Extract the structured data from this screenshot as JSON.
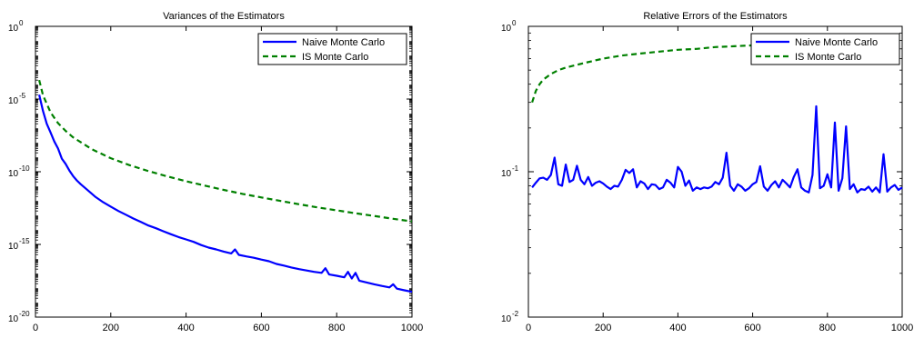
{
  "chart_data": [
    {
      "type": "line",
      "title": "Variances of the Estimators",
      "xlabel": "",
      "ylabel": "",
      "yscale": "log",
      "xlim": [
        0,
        1000
      ],
      "ylim": [
        1e-20,
        1
      ],
      "x_ticks": [
        "0",
        "200",
        "400",
        "600",
        "800",
        "1000"
      ],
      "y_ticks": [
        {
          "base": "10",
          "exp": "0"
        },
        {
          "base": "10",
          "exp": "-5"
        },
        {
          "base": "10",
          "exp": "-10"
        },
        {
          "base": "10",
          "exp": "-15"
        },
        {
          "base": "10",
          "exp": "-20"
        }
      ],
      "grid": false,
      "legend": "top-right",
      "series": [
        {
          "name": "Naive Monte Carlo",
          "color": "#0000ff",
          "style": "solid",
          "points": [
            [
              10,
              2e-05
            ],
            [
              20,
              1.5e-06
            ],
            [
              30,
              2e-07
            ],
            [
              40,
              5e-08
            ],
            [
              50,
              1.2e-08
            ],
            [
              60,
              4e-09
            ],
            [
              70,
              8e-10
            ],
            [
              80,
              3.5e-10
            ],
            [
              90,
              1.2e-10
            ],
            [
              100,
              5e-11
            ],
            [
              110,
              2.5e-11
            ],
            [
              120,
              1.4e-11
            ],
            [
              140,
              5e-12
            ],
            [
              160,
              1.8e-12
            ],
            [
              180,
              8e-13
            ],
            [
              200,
              4e-13
            ],
            [
              220,
              2e-13
            ],
            [
              240,
              1.1e-13
            ],
            [
              260,
              6e-14
            ],
            [
              280,
              3.5e-14
            ],
            [
              300,
              2e-14
            ],
            [
              320,
              1.3e-14
            ],
            [
              340,
              8e-15
            ],
            [
              360,
              5e-15
            ],
            [
              380,
              3.2e-15
            ],
            [
              400,
              2.2e-15
            ],
            [
              420,
              1.5e-15
            ],
            [
              440,
              9e-16
            ],
            [
              460,
              6e-16
            ],
            [
              480,
              4.5e-16
            ],
            [
              500,
              3.2e-16
            ],
            [
              520,
              2.4e-16
            ],
            [
              530,
              4.5e-16
            ],
            [
              540,
              1.9e-16
            ],
            [
              560,
              1.5e-16
            ],
            [
              580,
              1.2e-16
            ],
            [
              600,
              9e-17
            ],
            [
              620,
              7e-17
            ],
            [
              640,
              4.5e-17
            ],
            [
              660,
              3.5e-17
            ],
            [
              680,
              2.6e-17
            ],
            [
              700,
              2e-17
            ],
            [
              720,
              1.6e-17
            ],
            [
              740,
              1.3e-17
            ],
            [
              760,
              1.1e-17
            ],
            [
              770,
              2.3e-17
            ],
            [
              780,
              8.5e-18
            ],
            [
              800,
              7e-18
            ],
            [
              820,
              5.5e-18
            ],
            [
              830,
              1.3e-17
            ],
            [
              840,
              4.5e-18
            ],
            [
              850,
              1.1e-17
            ],
            [
              860,
              3.2e-18
            ],
            [
              880,
              2.4e-18
            ],
            [
              900,
              1.8e-18
            ],
            [
              920,
              1.4e-18
            ],
            [
              940,
              1.1e-18
            ],
            [
              950,
              1.8e-18
            ],
            [
              960,
              9e-19
            ],
            [
              980,
              7e-19
            ],
            [
              1000,
              5.5e-19
            ]
          ]
        },
        {
          "name": "IS Monte Carlo",
          "color": "#008000",
          "style": "dashed",
          "points": [
            [
              10,
              0.0002
            ],
            [
              20,
              1.8e-05
            ],
            [
              40,
              1.2e-06
            ],
            [
              60,
              2.2e-07
            ],
            [
              80,
              6.5e-08
            ],
            [
              100,
              2.3e-08
            ],
            [
              150,
              3.5e-09
            ],
            [
              200,
              8.5e-10
            ],
            [
              250,
              2.8e-10
            ],
            [
              300,
              1.1e-10
            ],
            [
              350,
              4.8e-11
            ],
            [
              400,
              2.2e-11
            ],
            [
              450,
              1.1e-11
            ],
            [
              500,
              5.6e-12
            ],
            [
              550,
              3e-12
            ],
            [
              600,
              1.7e-12
            ],
            [
              650,
              9.8e-13
            ],
            [
              700,
              5.8e-13
            ],
            [
              750,
              3.5e-13
            ],
            [
              800,
              2.2e-13
            ],
            [
              850,
              1.4e-13
            ],
            [
              900,
              9e-14
            ],
            [
              950,
              5.8e-14
            ],
            [
              1000,
              3.8e-14
            ]
          ]
        }
      ]
    },
    {
      "type": "line",
      "title": "Relative Errors of the Estimators",
      "xlabel": "",
      "ylabel": "",
      "yscale": "log",
      "xlim": [
        0,
        1000
      ],
      "ylim": [
        0.01,
        1
      ],
      "x_ticks": [
        "0",
        "200",
        "400",
        "600",
        "800",
        "1000"
      ],
      "y_ticks": [
        {
          "base": "10",
          "exp": "0"
        },
        {
          "base": "10",
          "exp": "-1"
        },
        {
          "base": "10",
          "exp": "-2"
        }
      ],
      "grid": false,
      "legend": "top-right",
      "series": [
        {
          "name": "Naive Monte Carlo",
          "color": "#0000ff",
          "style": "solid",
          "points": [
            [
              10,
              0.078
            ],
            [
              20,
              0.084
            ],
            [
              30,
              0.09
            ],
            [
              40,
              0.091
            ],
            [
              50,
              0.088
            ],
            [
              60,
              0.095
            ],
            [
              70,
              0.125
            ],
            [
              80,
              0.082
            ],
            [
              90,
              0.08
            ],
            [
              100,
              0.112
            ],
            [
              110,
              0.085
            ],
            [
              120,
              0.088
            ],
            [
              130,
              0.11
            ],
            [
              140,
              0.088
            ],
            [
              150,
              0.082
            ],
            [
              160,
              0.092
            ],
            [
              170,
              0.08
            ],
            [
              180,
              0.084
            ],
            [
              190,
              0.086
            ],
            [
              200,
              0.083
            ],
            [
              210,
              0.079
            ],
            [
              220,
              0.076
            ],
            [
              230,
              0.08
            ],
            [
              240,
              0.079
            ],
            [
              250,
              0.088
            ],
            [
              260,
              0.103
            ],
            [
              270,
              0.098
            ],
            [
              280,
              0.104
            ],
            [
              290,
              0.078
            ],
            [
              300,
              0.086
            ],
            [
              310,
              0.083
            ],
            [
              320,
              0.076
            ],
            [
              330,
              0.082
            ],
            [
              340,
              0.081
            ],
            [
              350,
              0.076
            ],
            [
              360,
              0.078
            ],
            [
              370,
              0.088
            ],
            [
              380,
              0.084
            ],
            [
              390,
              0.078
            ],
            [
              400,
              0.108
            ],
            [
              410,
              0.1
            ],
            [
              420,
              0.08
            ],
            [
              430,
              0.087
            ],
            [
              440,
              0.074
            ],
            [
              450,
              0.078
            ],
            [
              460,
              0.076
            ],
            [
              470,
              0.078
            ],
            [
              480,
              0.077
            ],
            [
              490,
              0.079
            ],
            [
              500,
              0.085
            ],
            [
              510,
              0.082
            ],
            [
              520,
              0.091
            ],
            [
              530,
              0.135
            ],
            [
              540,
              0.08
            ],
            [
              550,
              0.074
            ],
            [
              560,
              0.082
            ],
            [
              570,
              0.079
            ],
            [
              580,
              0.074
            ],
            [
              590,
              0.077
            ],
            [
              600,
              0.082
            ],
            [
              610,
              0.085
            ],
            [
              620,
              0.109
            ],
            [
              630,
              0.079
            ],
            [
              640,
              0.074
            ],
            [
              650,
              0.081
            ],
            [
              660,
              0.086
            ],
            [
              670,
              0.078
            ],
            [
              680,
              0.088
            ],
            [
              690,
              0.083
            ],
            [
              700,
              0.078
            ],
            [
              710,
              0.092
            ],
            [
              720,
              0.104
            ],
            [
              730,
              0.078
            ],
            [
              740,
              0.074
            ],
            [
              750,
              0.072
            ],
            [
              760,
              0.095
            ],
            [
              770,
              0.282
            ],
            [
              780,
              0.077
            ],
            [
              790,
              0.08
            ],
            [
              800,
              0.096
            ],
            [
              810,
              0.078
            ],
            [
              820,
              0.218
            ],
            [
              830,
              0.074
            ],
            [
              840,
              0.09
            ],
            [
              850,
              0.205
            ],
            [
              860,
              0.076
            ],
            [
              870,
              0.082
            ],
            [
              880,
              0.072
            ],
            [
              890,
              0.076
            ],
            [
              900,
              0.075
            ],
            [
              910,
              0.079
            ],
            [
              920,
              0.073
            ],
            [
              930,
              0.078
            ],
            [
              940,
              0.072
            ],
            [
              950,
              0.132
            ],
            [
              960,
              0.073
            ],
            [
              970,
              0.078
            ],
            [
              980,
              0.081
            ],
            [
              990,
              0.075
            ],
            [
              1000,
              0.078
            ]
          ]
        },
        {
          "name": "IS Monte Carlo",
          "color": "#008000",
          "style": "dashed",
          "points": [
            [
              10,
              0.3
            ],
            [
              20,
              0.36
            ],
            [
              30,
              0.4
            ],
            [
              40,
              0.43
            ],
            [
              60,
              0.47
            ],
            [
              80,
              0.5
            ],
            [
              100,
              0.52
            ],
            [
              150,
              0.56
            ],
            [
              200,
              0.6
            ],
            [
              250,
              0.63
            ],
            [
              300,
              0.65
            ],
            [
              350,
              0.67
            ],
            [
              400,
              0.69
            ],
            [
              450,
              0.7
            ],
            [
              500,
              0.72
            ],
            [
              550,
              0.73
            ],
            [
              600,
              0.74
            ],
            [
              650,
              0.75
            ],
            [
              700,
              0.76
            ],
            [
              750,
              0.77
            ],
            [
              800,
              0.78
            ],
            [
              850,
              0.785
            ],
            [
              900,
              0.79
            ],
            [
              950,
              0.8
            ],
            [
              1000,
              0.81
            ]
          ]
        }
      ]
    }
  ]
}
